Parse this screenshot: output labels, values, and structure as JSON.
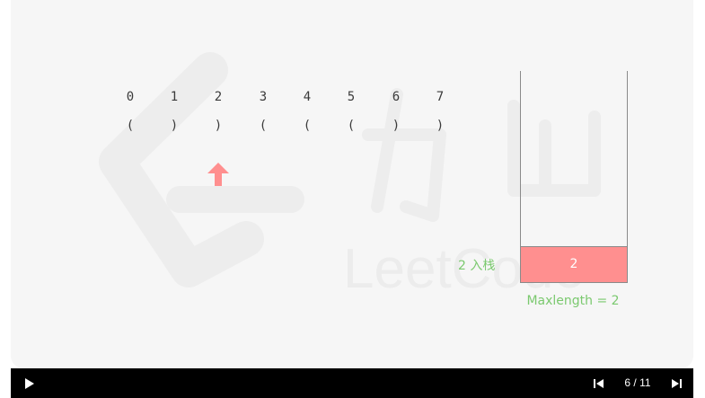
{
  "indices": [
    "0",
    "1",
    "2",
    "3",
    "4",
    "5",
    "6",
    "7"
  ],
  "parens": [
    "(",
    ")",
    ")",
    "(",
    "(",
    "(",
    ")",
    ")"
  ],
  "stack": {
    "items": [
      "2"
    ],
    "push_label": "2 入栈"
  },
  "maxlength_label": "Maxlength = 2",
  "pointer_index": 2,
  "player": {
    "counter": "6 / 11",
    "current_step": 6,
    "total_steps": 11
  },
  "watermark_text": "LeetCode",
  "colors": {
    "slide_bg": "#f6f6f6",
    "stack_item": "#ff8f8f",
    "pointer": "#ff8f8f",
    "label_green": "#7bc96f",
    "control_bar": "#000000"
  }
}
